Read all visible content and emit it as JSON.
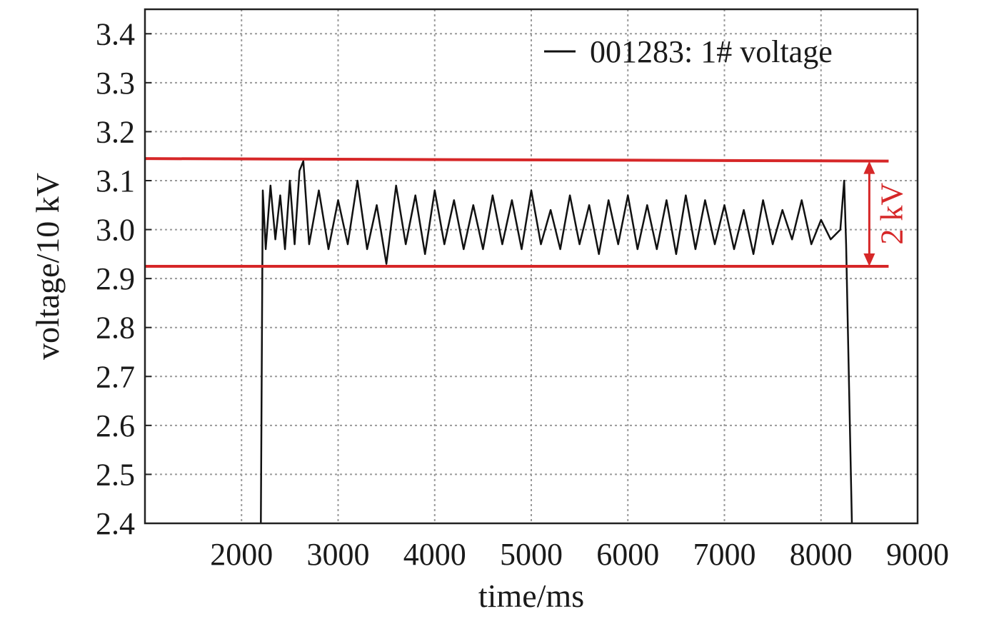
{
  "chart_data": {
    "type": "line",
    "title": "",
    "xlabel": "time/ms",
    "ylabel": "voltage/10 kV",
    "xlim": [
      1000,
      9000
    ],
    "ylim": [
      2.4,
      3.45
    ],
    "x_ticks": [
      2000,
      3000,
      4000,
      5000,
      6000,
      7000,
      8000,
      9000
    ],
    "y_ticks": [
      2.4,
      2.5,
      2.6,
      2.7,
      2.8,
      2.9,
      3.0,
      3.1,
      3.2,
      3.3,
      3.4
    ],
    "grid": true,
    "legend_position": "top-right",
    "series": [
      {
        "name": "001283: 1# voltage",
        "color": "#111111",
        "x": [
          2200,
          2220,
          2250,
          2300,
          2350,
          2400,
          2450,
          2500,
          2550,
          2600,
          2640,
          2700,
          2800,
          2900,
          3000,
          3100,
          3200,
          3300,
          3400,
          3500,
          3600,
          3700,
          3800,
          3900,
          4000,
          4100,
          4200,
          4300,
          4400,
          4500,
          4600,
          4700,
          4800,
          4900,
          5000,
          5100,
          5200,
          5300,
          5400,
          5500,
          5600,
          5700,
          5800,
          5900,
          6000,
          6100,
          6200,
          6300,
          6400,
          6500,
          6600,
          6700,
          6800,
          6900,
          7000,
          7100,
          7200,
          7300,
          7400,
          7500,
          7600,
          7700,
          7800,
          7900,
          8000,
          8100,
          8200,
          8240,
          8260,
          8320
        ],
        "y": [
          2.4,
          3.08,
          2.96,
          3.09,
          2.98,
          3.07,
          2.96,
          3.1,
          2.97,
          3.12,
          3.14,
          2.97,
          3.08,
          2.96,
          3.06,
          2.97,
          3.1,
          2.96,
          3.05,
          2.93,
          3.09,
          2.97,
          3.07,
          2.95,
          3.08,
          2.97,
          3.06,
          2.96,
          3.05,
          2.96,
          3.07,
          2.97,
          3.06,
          2.96,
          3.08,
          2.97,
          3.04,
          2.96,
          3.07,
          2.97,
          3.05,
          2.95,
          3.06,
          2.97,
          3.07,
          2.96,
          3.05,
          2.96,
          3.06,
          2.95,
          3.07,
          2.96,
          3.06,
          2.97,
          3.05,
          2.96,
          3.04,
          2.95,
          3.06,
          2.97,
          3.04,
          2.98,
          3.06,
          2.97,
          3.02,
          2.98,
          3.0,
          3.1,
          2.97,
          2.4
        ]
      }
    ],
    "reference_lines": [
      {
        "type": "horizontal",
        "x": [
          1000,
          8700
        ],
        "y": [
          3.145,
          3.14
        ],
        "color": "#d62728"
      },
      {
        "type": "horizontal",
        "x": [
          1000,
          8700
        ],
        "y": [
          2.925,
          2.925
        ],
        "color": "#d62728"
      }
    ],
    "annotations": [
      {
        "text": "2 kV",
        "x": 8500,
        "y_range": [
          2.925,
          3.14
        ],
        "color": "#d62728"
      }
    ]
  }
}
